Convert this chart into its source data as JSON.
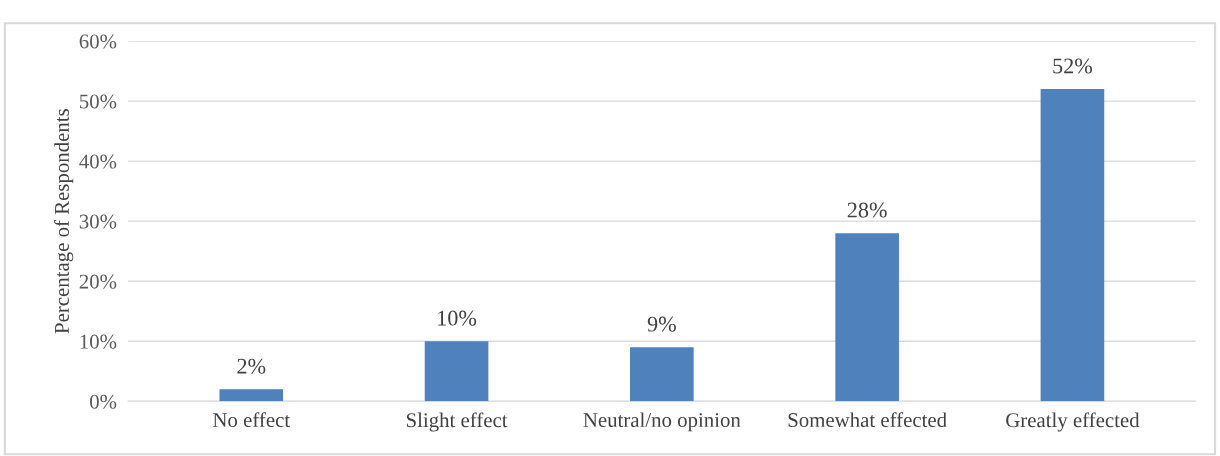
{
  "chart_data": {
    "type": "bar",
    "ylabel": "Percentage of Respondents",
    "categories": [
      "No effect",
      "Slight effect",
      "Neutral/no opinion",
      "Somewhat effected",
      "Greatly effected"
    ],
    "values": [
      2,
      10,
      9,
      28,
      52
    ],
    "value_labels": [
      "2%",
      "10%",
      "9%",
      "28%",
      "52%"
    ],
    "color": "#4f81bd",
    "ylim": [
      0,
      60
    ],
    "yticks": [
      {
        "value": 0,
        "label": "0%"
      },
      {
        "value": 10,
        "label": "10%"
      },
      {
        "value": 20,
        "label": "20%"
      },
      {
        "value": 30,
        "label": "30%"
      },
      {
        "value": 40,
        "label": "40%"
      },
      {
        "value": 50,
        "label": "50%"
      },
      {
        "value": 60,
        "label": "60%"
      }
    ],
    "grid": "y"
  }
}
